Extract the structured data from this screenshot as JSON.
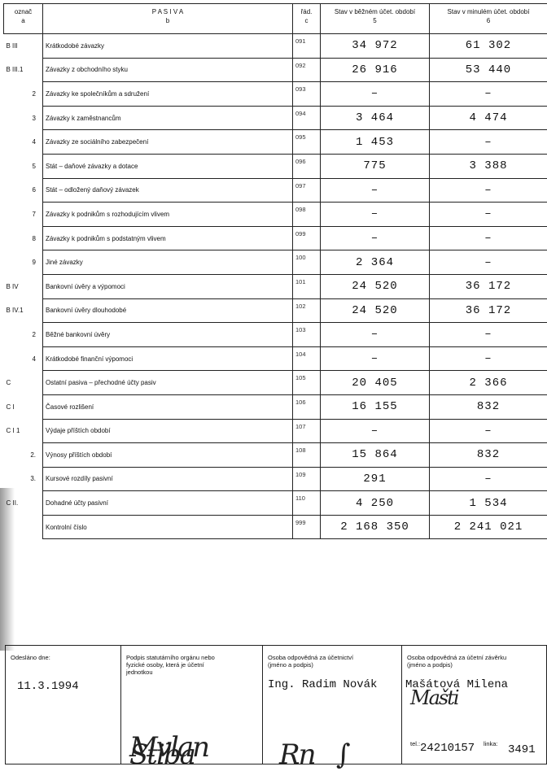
{
  "header": {
    "col_a": "označ",
    "col_a_sub": "a",
    "col_b": "P A S I V A",
    "col_b_sub": "b",
    "col_c": "řád.",
    "col_c_sub": "c",
    "col_5": "Stav v běžném účet. období",
    "col_5_sub": "5",
    "col_6": "Stav v minulém účet. období",
    "col_6_sub": "6"
  },
  "rows": [
    {
      "mark": "B  III",
      "label": "Krátkodobé závazky",
      "code": "091",
      "current": "34 972",
      "previous": "61 302"
    },
    {
      "mark": "B  III.1",
      "label": "Závazky z obchodního styku",
      "code": "092",
      "current": "26 916",
      "previous": "53 440"
    },
    {
      "mark": "2",
      "label": "Závazky ke společníkům a sdružení",
      "code": "093",
      "current": "–",
      "previous": "–"
    },
    {
      "mark": "3",
      "label": "Závazky k zaměstnancům",
      "code": "094",
      "current": "3 464",
      "previous": "4 474"
    },
    {
      "mark": "4",
      "label": "Závazky ze sociálního zabezpečení",
      "code": "095",
      "current": "1 453",
      "previous": "–"
    },
    {
      "mark": "5",
      "label": "Stát – daňové závazky a dotace",
      "code": "096",
      "current": "775",
      "previous": "3 388"
    },
    {
      "mark": "6",
      "label": "Stát – odložený daňový závazek",
      "code": "097",
      "current": "–",
      "previous": "–"
    },
    {
      "mark": "7",
      "label": "Závazky k podnikům s rozhodujícím vlivem",
      "code": "098",
      "current": "–",
      "previous": "–"
    },
    {
      "mark": "8",
      "label": "Závazky k podnikům s podstatným vlivem",
      "code": "099",
      "current": "–",
      "previous": "–"
    },
    {
      "mark": "9",
      "label": "Jiné závazky",
      "code": "100",
      "current": "2 364",
      "previous": "–"
    },
    {
      "mark": "B  IV",
      "label": "Bankovní úvěry a výpomoci",
      "code": "101",
      "current": "24 520",
      "previous": "36 172"
    },
    {
      "mark": "B  IV.1",
      "label": "Bankovní úvěry dlouhodobé",
      "code": "102",
      "current": "24 520",
      "previous": "36 172"
    },
    {
      "mark": "2",
      "label": "Běžné bankovní úvěry",
      "code": "103",
      "current": "–",
      "previous": "–"
    },
    {
      "mark": "4",
      "label": "Krátkodobé finanční výpomoci",
      "code": "104",
      "current": "–",
      "previous": "–"
    },
    {
      "mark": "C",
      "label": "Ostatní pasiva – přechodné účty pasiv",
      "code": "105",
      "current": "20 405",
      "previous": "2 366"
    },
    {
      "mark": "C  I",
      "label": "Časové rozlišení",
      "code": "106",
      "current": "16 155",
      "previous": "832"
    },
    {
      "mark": "C  I  1",
      "label": "Výdaje příštích období",
      "code": "107",
      "current": "–",
      "previous": "–"
    },
    {
      "mark": "2.",
      "label": "Výnosy příštích období",
      "code": "108",
      "current": "15 864",
      "previous": "832"
    },
    {
      "mark": "3.",
      "label": "Kursové rozdíly pasivní",
      "code": "109",
      "current": "291",
      "previous": "–"
    },
    {
      "mark": "C  II.",
      "label": "Dohadné účty pasivní",
      "code": "110",
      "current": "4 250",
      "previous": "1 534"
    },
    {
      "mark": "",
      "label": "Kontrolní číslo",
      "code": "999",
      "current": "2 168 350",
      "previous": "2 241 021"
    }
  ],
  "footer": {
    "sent_label": "Odesláno dne:",
    "sent_date": "11.3.1994",
    "signature_label": "Podpis statutárního orgánu nebo fyzické osoby, která je účetní jednotkou",
    "signature": "Milan Stibor",
    "accounting_label": "Osoba odpovědná za účetnictví (jméno a podpis)",
    "accounting_name": "Ing. Radim Novák",
    "closing_label": "Osoba odpovědná za účetní závěrku (jméno a podpis)",
    "closing_name": "Mašátová Milena",
    "tel_label": "tel.:",
    "tel": "24210157",
    "ext_label": "linka:",
    "ext": "3491"
  }
}
